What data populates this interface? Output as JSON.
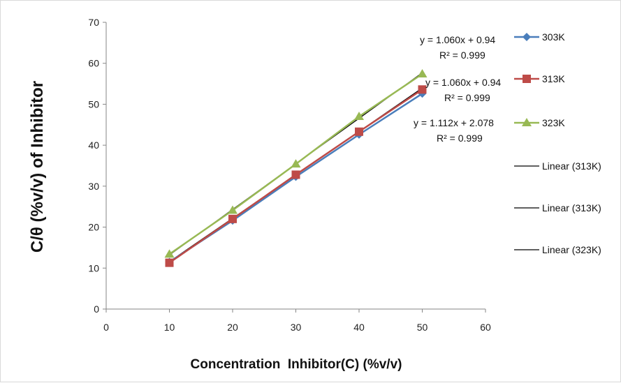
{
  "chart_data": {
    "type": "line",
    "title": "",
    "xlabel": "Concentration  Inhibitor(C) (%v/v)",
    "ylabel": "C/θ (%v/v) of Inhibitor",
    "xlim": [
      0,
      60
    ],
    "ylim": [
      0,
      70
    ],
    "xticks": [
      "0",
      "10",
      "20",
      "30",
      "40",
      "50",
      "60"
    ],
    "yticks": [
      "0",
      "10",
      "20",
      "30",
      "40",
      "50",
      "60",
      "70"
    ],
    "grid": false,
    "legend_position": "right",
    "x": [
      10,
      20,
      30,
      40,
      50
    ],
    "series": [
      {
        "name": "303K",
        "color": "#4a7ebb",
        "marker": "diamond",
        "values": [
          11.5,
          21.6,
          32.3,
          42.6,
          52.6
        ]
      },
      {
        "name": "313K",
        "color": "#be4b48",
        "marker": "square",
        "values": [
          11.3,
          22.0,
          32.8,
          43.3,
          53.6
        ]
      },
      {
        "name": "323K",
        "color": "#98b954",
        "marker": "triangle",
        "values": [
          13.4,
          24.1,
          35.4,
          47.0,
          57.4
        ]
      }
    ],
    "trendlines": [
      {
        "name": "Linear (313K)",
        "slope": 1.06,
        "intercept": 0.94,
        "equation": "y = 1.060x + 0.94",
        "r2": "R² = 0.999"
      },
      {
        "name": "Linear (313K)",
        "slope": 1.06,
        "intercept": 0.94,
        "equation": "y = 1.060x + 0.94",
        "r2": "R² = 0.999"
      },
      {
        "name": "Linear (323K)",
        "slope": 1.112,
        "intercept": 2.078,
        "equation": "y = 1.112x + 2.078",
        "r2": "R² = 0.999"
      }
    ]
  }
}
